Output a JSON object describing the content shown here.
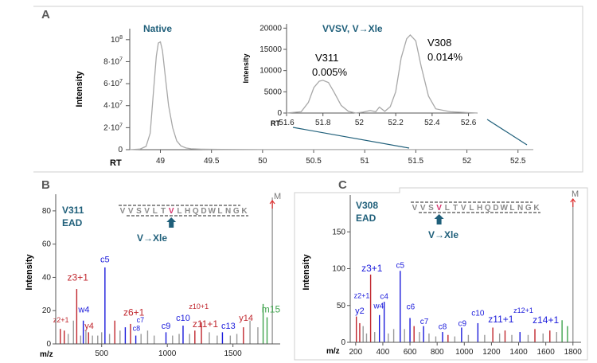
{
  "panels": {
    "A": "A",
    "B": "B",
    "C": "C"
  },
  "colors": {
    "teal": "#1f5f7a",
    "ion_c": "#1a1adb",
    "ion_z": "#c0262d",
    "ion_y": "#c0262d",
    "ion_w": "#1a1adb",
    "ion_m": "#3fa34d",
    "ion_other": "#9a9a9a",
    "modified_residue": "#d6336c",
    "precursor_arrow": "#e03030",
    "trace": "#a8a8a8"
  },
  "chart_data": [
    {
      "id": "A-main",
      "type": "line",
      "title": "Native",
      "xlabel": "RT",
      "ylabel": "Intensity",
      "xlim": [
        48.7,
        52.65
      ],
      "ylim": [
        0,
        110000000
      ],
      "x_ticks": [
        "49",
        "49.5",
        "50",
        "50.5",
        "51",
        "51.5",
        "52",
        "52.5"
      ],
      "y_ticks": [
        "0",
        "2·10^7",
        "4·10^7",
        "6·10^7",
        "8·10^7",
        "10^8"
      ],
      "series": [
        {
          "x": [
            48.7,
            48.8,
            48.86,
            48.9,
            48.93,
            48.96,
            48.98,
            49.0,
            49.02,
            49.05,
            49.08,
            49.12,
            49.16,
            49.2,
            49.25,
            49.3,
            49.4,
            49.6,
            50.0,
            51.0,
            52.0,
            52.65
          ],
          "y": [
            0,
            500000,
            3000000,
            15000000,
            50000000,
            85000000,
            97000000,
            98000000,
            90000000,
            65000000,
            40000000,
            20000000,
            8000000,
            3500000,
            1500000,
            800000,
            400000,
            200000,
            100000,
            100000,
            100000,
            100000
          ]
        }
      ]
    },
    {
      "id": "A-inset",
      "type": "line",
      "title": "VVSV, V→Xle",
      "xlabel": "RT",
      "ylabel": "Intensity",
      "xlim": [
        51.6,
        52.65
      ],
      "ylim": [
        0,
        21000
      ],
      "x_ticks": [
        "51.6",
        "51.8",
        "52",
        "52.2",
        "52.4",
        "52.6"
      ],
      "y_ticks": [
        "0",
        "5000",
        "10000",
        "15000",
        "20000"
      ],
      "annotations": [
        {
          "label": "V311",
          "value": "0.005%"
        },
        {
          "label": "V308",
          "value": "0.014%"
        }
      ],
      "series": [
        {
          "x": [
            51.6,
            51.68,
            51.72,
            51.75,
            51.78,
            51.8,
            51.83,
            51.86,
            51.9,
            51.94,
            51.98,
            52.02,
            52.06,
            52.09,
            52.11,
            52.14,
            52.17,
            52.2,
            52.23,
            52.26,
            52.28,
            52.31,
            52.34,
            52.38,
            52.42,
            52.5,
            52.6,
            52.65
          ],
          "y": [
            0,
            300,
            2500,
            6000,
            7500,
            7700,
            7200,
            5000,
            1800,
            400,
            0,
            200,
            600,
            300,
            1400,
            400,
            1500,
            5000,
            13000,
            17500,
            18400,
            17000,
            11000,
            4000,
            1000,
            300,
            100,
            0
          ]
        }
      ]
    },
    {
      "id": "B",
      "type": "bar",
      "ylabel": "Intensity",
      "xlabel": "m/z",
      "label_1": "V311",
      "label_2": "EAD",
      "sequence": [
        "V",
        "V",
        "S",
        "V",
        "L",
        "T",
        "V",
        "L",
        "H",
        "Q",
        "D",
        "W",
        "L",
        "N",
        "G",
        "K"
      ],
      "modified_index": 6,
      "mutation": "V→Xle",
      "precursor": "M",
      "xlim": [
        150,
        1860
      ],
      "ylim": [
        0,
        90
      ],
      "x_ticks": [
        "500",
        "1000",
        "1500"
      ],
      "y_ticks": [
        "0",
        "20",
        "40",
        "60",
        "80"
      ],
      "peaks": [
        {
          "mz": 185,
          "i": 9,
          "kind": "z"
        },
        {
          "mz": 215,
          "i": 8,
          "kind": "z"
        },
        {
          "mz": 245,
          "i": 6,
          "kind": "other"
        },
        {
          "mz": 285,
          "i": 14,
          "kind": "other"
        },
        {
          "mz": 310,
          "i": 33,
          "kind": "z"
        },
        {
          "mz": 340,
          "i": 5,
          "kind": "other"
        },
        {
          "mz": 360,
          "i": 14,
          "kind": "w"
        },
        {
          "mz": 380,
          "i": 8,
          "kind": "other"
        },
        {
          "mz": 400,
          "i": 7,
          "kind": "y"
        },
        {
          "mz": 430,
          "i": 5,
          "kind": "other"
        },
        {
          "mz": 470,
          "i": 5,
          "kind": "other"
        },
        {
          "mz": 500,
          "i": 7,
          "kind": "other"
        },
        {
          "mz": 525,
          "i": 46,
          "kind": "c"
        },
        {
          "mz": 560,
          "i": 6,
          "kind": "other"
        },
        {
          "mz": 600,
          "i": 14,
          "kind": "z"
        },
        {
          "mz": 640,
          "i": 8,
          "kind": "other"
        },
        {
          "mz": 680,
          "i": 10,
          "kind": "c"
        },
        {
          "mz": 720,
          "i": 12,
          "kind": "z"
        },
        {
          "mz": 760,
          "i": 5,
          "kind": "c"
        },
        {
          "mz": 800,
          "i": 6,
          "kind": "other"
        },
        {
          "mz": 850,
          "i": 8,
          "kind": "other"
        },
        {
          "mz": 900,
          "i": 5,
          "kind": "other"
        },
        {
          "mz": 990,
          "i": 7,
          "kind": "c"
        },
        {
          "mz": 1040,
          "i": 5,
          "kind": "other"
        },
        {
          "mz": 1090,
          "i": 6,
          "kind": "other"
        },
        {
          "mz": 1120,
          "i": 11,
          "kind": "c"
        },
        {
          "mz": 1170,
          "i": 6,
          "kind": "other"
        },
        {
          "mz": 1210,
          "i": 8,
          "kind": "z"
        },
        {
          "mz": 1260,
          "i": 13,
          "kind": "z"
        },
        {
          "mz": 1320,
          "i": 7,
          "kind": "other"
        },
        {
          "mz": 1380,
          "i": 5,
          "kind": "other"
        },
        {
          "mz": 1420,
          "i": 7,
          "kind": "c"
        },
        {
          "mz": 1480,
          "i": 5,
          "kind": "other"
        },
        {
          "mz": 1530,
          "i": 6,
          "kind": "other"
        },
        {
          "mz": 1580,
          "i": 10,
          "kind": "y"
        },
        {
          "mz": 1630,
          "i": 14,
          "kind": "other"
        },
        {
          "mz": 1690,
          "i": 10,
          "kind": "other"
        },
        {
          "mz": 1730,
          "i": 24,
          "kind": "m"
        },
        {
          "mz": 1760,
          "i": 16,
          "kind": "m"
        },
        {
          "mz": 1800,
          "i": 88,
          "kind": "other"
        }
      ],
      "ion_labels": [
        {
          "text": "z2+1",
          "mz": 190,
          "i": 13,
          "kind": "z",
          "size": 9
        },
        {
          "text": "z3+1",
          "mz": 318,
          "i": 38,
          "kind": "z",
          "size": 12
        },
        {
          "text": "w4",
          "mz": 365,
          "i": 19,
          "kind": "w",
          "size": 11
        },
        {
          "text": "y4",
          "mz": 405,
          "i": 9,
          "kind": "y",
          "size": 11
        },
        {
          "text": "c5",
          "mz": 525,
          "i": 49,
          "kind": "c",
          "size": 11
        },
        {
          "text": "z6+1",
          "mz": 745,
          "i": 17,
          "kind": "z",
          "size": 12
        },
        {
          "text": "c7",
          "mz": 795,
          "i": 13,
          "kind": "c",
          "size": 9
        },
        {
          "text": "c8",
          "mz": 765,
          "i": 8,
          "kind": "c",
          "size": 9
        },
        {
          "text": "c9",
          "mz": 990,
          "i": 9,
          "kind": "c",
          "size": 11
        },
        {
          "text": "c10",
          "mz": 1120,
          "i": 14,
          "kind": "c",
          "size": 11
        },
        {
          "text": "z10+1",
          "mz": 1240,
          "i": 21,
          "kind": "z",
          "size": 9
        },
        {
          "text": "z11+1",
          "mz": 1290,
          "i": 10,
          "kind": "z",
          "size": 12
        },
        {
          "text": "c13",
          "mz": 1465,
          "i": 9,
          "kind": "c",
          "size": 11
        },
        {
          "text": "y14",
          "mz": 1600,
          "i": 14,
          "kind": "y",
          "size": 11
        },
        {
          "text": "m15",
          "mz": 1790,
          "i": 19,
          "kind": "m",
          "size": 12
        }
      ]
    },
    {
      "id": "C",
      "type": "bar",
      "ylabel": "Intensity",
      "xlabel": "m/z",
      "label_1": "V308",
      "label_2": "EAD",
      "sequence": [
        "V",
        "V",
        "S",
        "V",
        "L",
        "T",
        "V",
        "L",
        "H",
        "Q",
        "D",
        "W",
        "L",
        "N",
        "G",
        "K"
      ],
      "modified_index": 3,
      "mutation": "V→Xle",
      "precursor": "M",
      "xlim": [
        160,
        1860
      ],
      "ylim": [
        0,
        200
      ],
      "x_ticks": [
        "200",
        "400",
        "600",
        "800",
        "1000",
        "1200",
        "1400",
        "1600",
        "1800"
      ],
      "y_ticks": [
        "0",
        "50",
        "100",
        "150"
      ],
      "peaks": [
        {
          "mz": 205,
          "i": 35,
          "kind": "z"
        },
        {
          "mz": 230,
          "i": 26,
          "kind": "y"
        },
        {
          "mz": 255,
          "i": 22,
          "kind": "other"
        },
        {
          "mz": 280,
          "i": 12,
          "kind": "other"
        },
        {
          "mz": 310,
          "i": 92,
          "kind": "z"
        },
        {
          "mz": 340,
          "i": 14,
          "kind": "other"
        },
        {
          "mz": 375,
          "i": 37,
          "kind": "w"
        },
        {
          "mz": 410,
          "i": 55,
          "kind": "c"
        },
        {
          "mz": 440,
          "i": 12,
          "kind": "other"
        },
        {
          "mz": 480,
          "i": 18,
          "kind": "other"
        },
        {
          "mz": 528,
          "i": 97,
          "kind": "c"
        },
        {
          "mz": 560,
          "i": 18,
          "kind": "other"
        },
        {
          "mz": 600,
          "i": 33,
          "kind": "c"
        },
        {
          "mz": 630,
          "i": 22,
          "kind": "z"
        },
        {
          "mz": 670,
          "i": 14,
          "kind": "other"
        },
        {
          "mz": 700,
          "i": 22,
          "kind": "c"
        },
        {
          "mz": 740,
          "i": 12,
          "kind": "other"
        },
        {
          "mz": 790,
          "i": 8,
          "kind": "other"
        },
        {
          "mz": 840,
          "i": 14,
          "kind": "c"
        },
        {
          "mz": 880,
          "i": 10,
          "kind": "z"
        },
        {
          "mz": 930,
          "i": 8,
          "kind": "other"
        },
        {
          "mz": 980,
          "i": 20,
          "kind": "c"
        },
        {
          "mz": 1030,
          "i": 10,
          "kind": "other"
        },
        {
          "mz": 1100,
          "i": 26,
          "kind": "c"
        },
        {
          "mz": 1150,
          "i": 10,
          "kind": "other"
        },
        {
          "mz": 1210,
          "i": 20,
          "kind": "z"
        },
        {
          "mz": 1260,
          "i": 12,
          "kind": "other"
        },
        {
          "mz": 1300,
          "i": 16,
          "kind": "z"
        },
        {
          "mz": 1350,
          "i": 10,
          "kind": "other"
        },
        {
          "mz": 1410,
          "i": 14,
          "kind": "c"
        },
        {
          "mz": 1470,
          "i": 10,
          "kind": "other"
        },
        {
          "mz": 1520,
          "i": 18,
          "kind": "z"
        },
        {
          "mz": 1580,
          "i": 12,
          "kind": "other"
        },
        {
          "mz": 1630,
          "i": 16,
          "kind": "z"
        },
        {
          "mz": 1680,
          "i": 14,
          "kind": "other"
        },
        {
          "mz": 1720,
          "i": 30,
          "kind": "m"
        },
        {
          "mz": 1760,
          "i": 22,
          "kind": "m"
        },
        {
          "mz": 1800,
          "i": 190,
          "kind": "other"
        }
      ],
      "ion_labels": [
        {
          "text": "z2+1",
          "mz": 245,
          "i": 60,
          "kind": "c",
          "size": 9
        },
        {
          "text": "y2",
          "mz": 230,
          "i": 39,
          "kind": "c",
          "size": 11
        },
        {
          "text": "z3+1",
          "mz": 320,
          "i": 96,
          "kind": "c",
          "size": 12
        },
        {
          "text": "w4",
          "mz": 370,
          "i": 46,
          "kind": "c",
          "size": 10
        },
        {
          "text": "c4",
          "mz": 410,
          "i": 59,
          "kind": "c",
          "size": 10
        },
        {
          "text": "c5",
          "mz": 528,
          "i": 101,
          "kind": "c",
          "size": 10
        },
        {
          "text": "c6",
          "mz": 605,
          "i": 45,
          "kind": "c",
          "size": 10
        },
        {
          "text": "c7",
          "mz": 705,
          "i": 25,
          "kind": "c",
          "size": 10
        },
        {
          "text": "c8",
          "mz": 840,
          "i": 18,
          "kind": "c",
          "size": 10
        },
        {
          "text": "c9",
          "mz": 985,
          "i": 22,
          "kind": "c",
          "size": 10
        },
        {
          "text": "c10",
          "mz": 1100,
          "i": 36,
          "kind": "c",
          "size": 10
        },
        {
          "text": "z11+1",
          "mz": 1270,
          "i": 27,
          "kind": "c",
          "size": 12
        },
        {
          "text": "z12+1",
          "mz": 1435,
          "i": 40,
          "kind": "c",
          "size": 9
        },
        {
          "text": "z14+1",
          "mz": 1600,
          "i": 26,
          "kind": "c",
          "size": 12
        }
      ]
    }
  ]
}
